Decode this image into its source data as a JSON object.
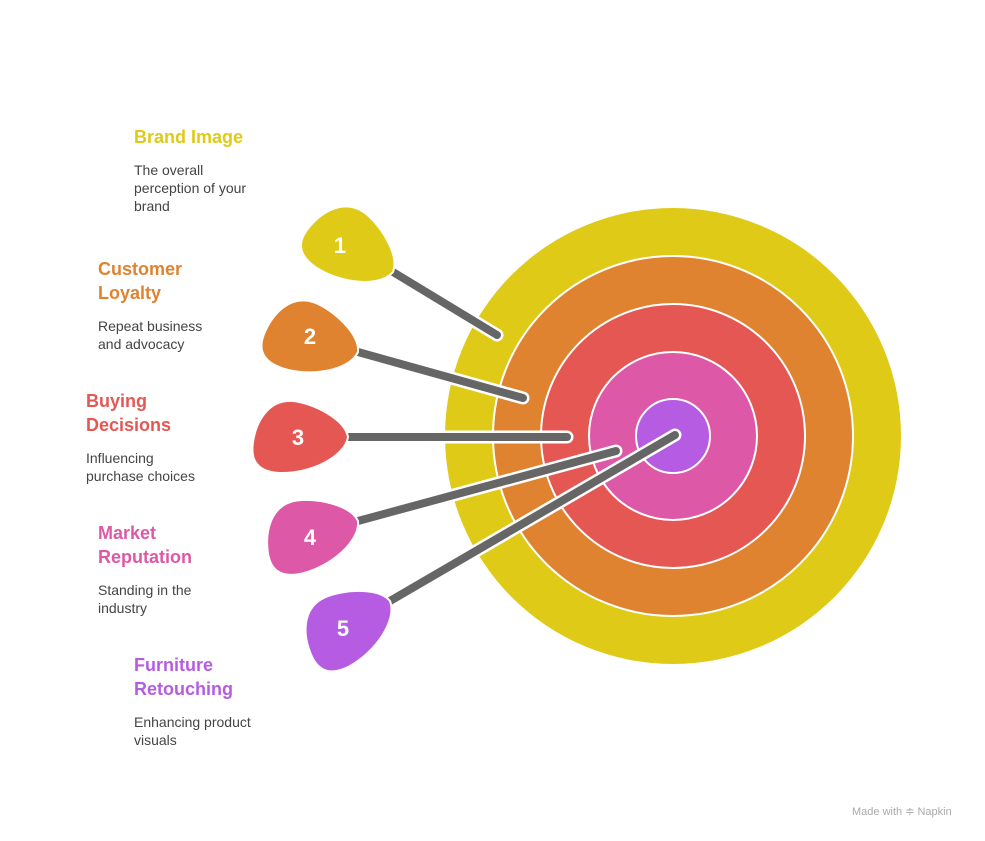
{
  "items": [
    {
      "number": "1",
      "title": "Brand Image",
      "description": "The overall perception of your brand",
      "color": "#dfcb17"
    },
    {
      "number": "2",
      "title": "Customer Loyalty",
      "description": "Repeat business and advocacy",
      "color": "#df8331"
    },
    {
      "number": "3",
      "title": "Buying Decisions",
      "description": "Influencing purchase choices",
      "color": "#e55753"
    },
    {
      "number": "4",
      "title": "Market Reputation",
      "description": "Standing in the industry",
      "color": "#dd58a7"
    },
    {
      "number": "5",
      "title": "Furniture Retouching",
      "description": "Enhancing product visuals",
      "color": "#b65ce2"
    }
  ],
  "shaft_color": "#666666",
  "watermark": "Made with ≑ Napkin"
}
